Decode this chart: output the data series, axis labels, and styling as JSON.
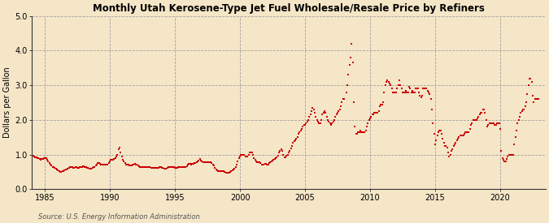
{
  "title": "Monthly Utah Kerosene-Type Jet Fuel Wholesale/Resale Price by Refiners",
  "ylabel": "Dollars per Gallon",
  "source_text": "Source: U.S. Energy Information Administration",
  "fig_facecolor": "#f5e6c8",
  "ax_facecolor": "#f5e6c8",
  "dot_color": "#cc0000",
  "xlim": [
    1984.0,
    2023.5
  ],
  "ylim": [
    0.0,
    5.0
  ],
  "yticks": [
    0.0,
    1.0,
    2.0,
    3.0,
    4.0,
    5.0
  ],
  "xticks": [
    1985,
    1990,
    1995,
    2000,
    2005,
    2010,
    2015,
    2020
  ],
  "data": [
    [
      1984.08,
      0.96
    ],
    [
      1984.17,
      0.94
    ],
    [
      1984.25,
      0.92
    ],
    [
      1984.33,
      0.91
    ],
    [
      1984.42,
      0.9
    ],
    [
      1984.5,
      0.89
    ],
    [
      1984.58,
      0.87
    ],
    [
      1984.67,
      0.86
    ],
    [
      1984.75,
      0.87
    ],
    [
      1984.83,
      0.88
    ],
    [
      1984.92,
      0.89
    ],
    [
      1985.0,
      0.9
    ],
    [
      1985.08,
      0.89
    ],
    [
      1985.17,
      0.85
    ],
    [
      1985.25,
      0.8
    ],
    [
      1985.33,
      0.75
    ],
    [
      1985.42,
      0.7
    ],
    [
      1985.5,
      0.68
    ],
    [
      1985.58,
      0.65
    ],
    [
      1985.67,
      0.63
    ],
    [
      1985.75,
      0.62
    ],
    [
      1985.83,
      0.6
    ],
    [
      1985.92,
      0.58
    ],
    [
      1986.0,
      0.55
    ],
    [
      1986.08,
      0.52
    ],
    [
      1986.17,
      0.5
    ],
    [
      1986.25,
      0.5
    ],
    [
      1986.33,
      0.52
    ],
    [
      1986.42,
      0.53
    ],
    [
      1986.5,
      0.55
    ],
    [
      1986.58,
      0.57
    ],
    [
      1986.67,
      0.58
    ],
    [
      1986.75,
      0.6
    ],
    [
      1986.83,
      0.62
    ],
    [
      1986.92,
      0.65
    ],
    [
      1987.0,
      0.65
    ],
    [
      1987.08,
      0.63
    ],
    [
      1987.17,
      0.62
    ],
    [
      1987.25,
      0.62
    ],
    [
      1987.33,
      0.63
    ],
    [
      1987.42,
      0.63
    ],
    [
      1987.5,
      0.62
    ],
    [
      1987.58,
      0.62
    ],
    [
      1987.67,
      0.63
    ],
    [
      1987.75,
      0.64
    ],
    [
      1987.83,
      0.65
    ],
    [
      1987.92,
      0.67
    ],
    [
      1988.0,
      0.67
    ],
    [
      1988.08,
      0.65
    ],
    [
      1988.17,
      0.63
    ],
    [
      1988.25,
      0.62
    ],
    [
      1988.33,
      0.61
    ],
    [
      1988.42,
      0.6
    ],
    [
      1988.5,
      0.6
    ],
    [
      1988.58,
      0.6
    ],
    [
      1988.67,
      0.62
    ],
    [
      1988.75,
      0.63
    ],
    [
      1988.83,
      0.65
    ],
    [
      1988.92,
      0.68
    ],
    [
      1989.0,
      0.72
    ],
    [
      1989.08,
      0.75
    ],
    [
      1989.17,
      0.75
    ],
    [
      1989.25,
      0.73
    ],
    [
      1989.33,
      0.72
    ],
    [
      1989.42,
      0.72
    ],
    [
      1989.5,
      0.7
    ],
    [
      1989.58,
      0.7
    ],
    [
      1989.67,
      0.7
    ],
    [
      1989.75,
      0.7
    ],
    [
      1989.83,
      0.72
    ],
    [
      1989.92,
      0.75
    ],
    [
      1990.0,
      0.8
    ],
    [
      1990.08,
      0.85
    ],
    [
      1990.17,
      0.85
    ],
    [
      1990.25,
      0.85
    ],
    [
      1990.33,
      0.88
    ],
    [
      1990.42,
      0.9
    ],
    [
      1990.5,
      0.95
    ],
    [
      1990.58,
      1.0
    ],
    [
      1990.67,
      1.15
    ],
    [
      1990.75,
      1.2
    ],
    [
      1990.83,
      1.05
    ],
    [
      1990.92,
      0.95
    ],
    [
      1991.0,
      0.85
    ],
    [
      1991.08,
      0.8
    ],
    [
      1991.17,
      0.75
    ],
    [
      1991.25,
      0.72
    ],
    [
      1991.33,
      0.7
    ],
    [
      1991.42,
      0.7
    ],
    [
      1991.5,
      0.68
    ],
    [
      1991.58,
      0.68
    ],
    [
      1991.67,
      0.68
    ],
    [
      1991.75,
      0.7
    ],
    [
      1991.83,
      0.72
    ],
    [
      1991.92,
      0.73
    ],
    [
      1992.0,
      0.72
    ],
    [
      1992.08,
      0.7
    ],
    [
      1992.17,
      0.68
    ],
    [
      1992.25,
      0.67
    ],
    [
      1992.33,
      0.65
    ],
    [
      1992.42,
      0.65
    ],
    [
      1992.5,
      0.65
    ],
    [
      1992.58,
      0.65
    ],
    [
      1992.67,
      0.65
    ],
    [
      1992.75,
      0.65
    ],
    [
      1992.83,
      0.65
    ],
    [
      1992.92,
      0.65
    ],
    [
      1993.0,
      0.64
    ],
    [
      1993.08,
      0.63
    ],
    [
      1993.17,
      0.62
    ],
    [
      1993.25,
      0.62
    ],
    [
      1993.33,
      0.62
    ],
    [
      1993.42,
      0.62
    ],
    [
      1993.5,
      0.62
    ],
    [
      1993.58,
      0.62
    ],
    [
      1993.67,
      0.62
    ],
    [
      1993.75,
      0.62
    ],
    [
      1993.83,
      0.63
    ],
    [
      1993.92,
      0.63
    ],
    [
      1994.0,
      0.62
    ],
    [
      1994.08,
      0.61
    ],
    [
      1994.17,
      0.6
    ],
    [
      1994.25,
      0.6
    ],
    [
      1994.33,
      0.6
    ],
    [
      1994.42,
      0.62
    ],
    [
      1994.5,
      0.63
    ],
    [
      1994.58,
      0.63
    ],
    [
      1994.67,
      0.63
    ],
    [
      1994.75,
      0.63
    ],
    [
      1994.83,
      0.63
    ],
    [
      1994.92,
      0.63
    ],
    [
      1995.0,
      0.62
    ],
    [
      1995.08,
      0.62
    ],
    [
      1995.17,
      0.62
    ],
    [
      1995.25,
      0.63
    ],
    [
      1995.33,
      0.63
    ],
    [
      1995.42,
      0.63
    ],
    [
      1995.5,
      0.63
    ],
    [
      1995.58,
      0.65
    ],
    [
      1995.67,
      0.65
    ],
    [
      1995.75,
      0.65
    ],
    [
      1995.83,
      0.65
    ],
    [
      1995.92,
      0.67
    ],
    [
      1996.0,
      0.7
    ],
    [
      1996.08,
      0.73
    ],
    [
      1996.17,
      0.73
    ],
    [
      1996.25,
      0.72
    ],
    [
      1996.33,
      0.73
    ],
    [
      1996.42,
      0.73
    ],
    [
      1996.5,
      0.75
    ],
    [
      1996.58,
      0.75
    ],
    [
      1996.67,
      0.77
    ],
    [
      1996.75,
      0.8
    ],
    [
      1996.83,
      0.82
    ],
    [
      1996.92,
      0.87
    ],
    [
      1997.0,
      0.83
    ],
    [
      1997.08,
      0.8
    ],
    [
      1997.17,
      0.78
    ],
    [
      1997.25,
      0.77
    ],
    [
      1997.33,
      0.77
    ],
    [
      1997.42,
      0.77
    ],
    [
      1997.5,
      0.77
    ],
    [
      1997.58,
      0.77
    ],
    [
      1997.67,
      0.77
    ],
    [
      1997.75,
      0.77
    ],
    [
      1997.83,
      0.75
    ],
    [
      1997.92,
      0.72
    ],
    [
      1998.0,
      0.68
    ],
    [
      1998.08,
      0.62
    ],
    [
      1998.17,
      0.58
    ],
    [
      1998.25,
      0.55
    ],
    [
      1998.33,
      0.53
    ],
    [
      1998.42,
      0.52
    ],
    [
      1998.5,
      0.52
    ],
    [
      1998.58,
      0.52
    ],
    [
      1998.67,
      0.52
    ],
    [
      1998.75,
      0.52
    ],
    [
      1998.83,
      0.5
    ],
    [
      1998.92,
      0.48
    ],
    [
      1999.0,
      0.47
    ],
    [
      1999.08,
      0.47
    ],
    [
      1999.17,
      0.47
    ],
    [
      1999.25,
      0.5
    ],
    [
      1999.33,
      0.52
    ],
    [
      1999.42,
      0.55
    ],
    [
      1999.5,
      0.58
    ],
    [
      1999.58,
      0.6
    ],
    [
      1999.67,
      0.65
    ],
    [
      1999.75,
      0.7
    ],
    [
      1999.83,
      0.8
    ],
    [
      1999.92,
      0.9
    ],
    [
      2000.0,
      0.95
    ],
    [
      2000.08,
      1.0
    ],
    [
      2000.17,
      1.0
    ],
    [
      2000.25,
      1.0
    ],
    [
      2000.33,
      0.98
    ],
    [
      2000.42,
      0.95
    ],
    [
      2000.5,
      0.95
    ],
    [
      2000.58,
      0.95
    ],
    [
      2000.67,
      1.0
    ],
    [
      2000.75,
      1.05
    ],
    [
      2000.83,
      1.05
    ],
    [
      2000.92,
      1.05
    ],
    [
      2001.0,
      1.0
    ],
    [
      2001.08,
      0.9
    ],
    [
      2001.17,
      0.85
    ],
    [
      2001.25,
      0.8
    ],
    [
      2001.33,
      0.78
    ],
    [
      2001.42,
      0.77
    ],
    [
      2001.5,
      0.77
    ],
    [
      2001.58,
      0.75
    ],
    [
      2001.67,
      0.72
    ],
    [
      2001.75,
      0.7
    ],
    [
      2001.83,
      0.72
    ],
    [
      2001.92,
      0.73
    ],
    [
      2002.0,
      0.73
    ],
    [
      2002.08,
      0.72
    ],
    [
      2002.17,
      0.72
    ],
    [
      2002.25,
      0.75
    ],
    [
      2002.33,
      0.78
    ],
    [
      2002.42,
      0.8
    ],
    [
      2002.5,
      0.82
    ],
    [
      2002.58,
      0.85
    ],
    [
      2002.67,
      0.88
    ],
    [
      2002.75,
      0.9
    ],
    [
      2002.83,
      0.93
    ],
    [
      2002.92,
      0.97
    ],
    [
      2003.0,
      1.05
    ],
    [
      2003.08,
      1.1
    ],
    [
      2003.17,
      1.15
    ],
    [
      2003.25,
      1.1
    ],
    [
      2003.33,
      1.0
    ],
    [
      2003.42,
      0.93
    ],
    [
      2003.5,
      0.93
    ],
    [
      2003.58,
      0.97
    ],
    [
      2003.67,
      1.0
    ],
    [
      2003.75,
      1.05
    ],
    [
      2003.83,
      1.1
    ],
    [
      2003.92,
      1.17
    ],
    [
      2004.0,
      1.25
    ],
    [
      2004.08,
      1.35
    ],
    [
      2004.17,
      1.38
    ],
    [
      2004.25,
      1.4
    ],
    [
      2004.33,
      1.45
    ],
    [
      2004.42,
      1.5
    ],
    [
      2004.5,
      1.6
    ],
    [
      2004.58,
      1.65
    ],
    [
      2004.67,
      1.7
    ],
    [
      2004.75,
      1.75
    ],
    [
      2004.83,
      1.8
    ],
    [
      2004.92,
      1.85
    ],
    [
      2005.0,
      1.85
    ],
    [
      2005.08,
      1.9
    ],
    [
      2005.17,
      1.95
    ],
    [
      2005.25,
      2.0
    ],
    [
      2005.33,
      2.1
    ],
    [
      2005.42,
      2.15
    ],
    [
      2005.5,
      2.25
    ],
    [
      2005.58,
      2.35
    ],
    [
      2005.67,
      2.3
    ],
    [
      2005.75,
      2.2
    ],
    [
      2005.83,
      2.1
    ],
    [
      2005.92,
      2.0
    ],
    [
      2006.0,
      1.95
    ],
    [
      2006.08,
      1.9
    ],
    [
      2006.17,
      1.9
    ],
    [
      2006.25,
      2.0
    ],
    [
      2006.33,
      2.15
    ],
    [
      2006.42,
      2.2
    ],
    [
      2006.5,
      2.25
    ],
    [
      2006.58,
      2.2
    ],
    [
      2006.67,
      2.1
    ],
    [
      2006.75,
      2.0
    ],
    [
      2006.83,
      1.95
    ],
    [
      2006.92,
      1.9
    ],
    [
      2007.0,
      1.85
    ],
    [
      2007.08,
      1.9
    ],
    [
      2007.17,
      1.95
    ],
    [
      2007.25,
      2.0
    ],
    [
      2007.33,
      2.1
    ],
    [
      2007.42,
      2.15
    ],
    [
      2007.5,
      2.2
    ],
    [
      2007.58,
      2.25
    ],
    [
      2007.67,
      2.3
    ],
    [
      2007.75,
      2.4
    ],
    [
      2007.83,
      2.5
    ],
    [
      2007.92,
      2.6
    ],
    [
      2008.0,
      2.6
    ],
    [
      2008.17,
      2.8
    ],
    [
      2008.25,
      3.0
    ],
    [
      2008.33,
      3.3
    ],
    [
      2008.42,
      3.6
    ],
    [
      2008.5,
      3.8
    ],
    [
      2008.58,
      4.2
    ],
    [
      2008.67,
      3.65
    ],
    [
      2008.75,
      2.5
    ],
    [
      2008.83,
      1.8
    ],
    [
      2008.92,
      1.6
    ],
    [
      2009.0,
      1.6
    ],
    [
      2009.08,
      1.65
    ],
    [
      2009.17,
      1.65
    ],
    [
      2009.25,
      1.7
    ],
    [
      2009.33,
      1.65
    ],
    [
      2009.42,
      1.65
    ],
    [
      2009.5,
      1.65
    ],
    [
      2009.58,
      1.65
    ],
    [
      2009.67,
      1.7
    ],
    [
      2009.75,
      1.8
    ],
    [
      2009.83,
      1.9
    ],
    [
      2009.92,
      2.0
    ],
    [
      2010.0,
      2.05
    ],
    [
      2010.08,
      2.1
    ],
    [
      2010.17,
      2.15
    ],
    [
      2010.25,
      2.15
    ],
    [
      2010.33,
      2.2
    ],
    [
      2010.42,
      2.2
    ],
    [
      2010.5,
      2.2
    ],
    [
      2010.58,
      2.2
    ],
    [
      2010.67,
      2.25
    ],
    [
      2010.75,
      2.4
    ],
    [
      2010.83,
      2.45
    ],
    [
      2010.92,
      2.45
    ],
    [
      2011.0,
      2.5
    ],
    [
      2011.08,
      2.8
    ],
    [
      2011.17,
      3.0
    ],
    [
      2011.25,
      3.1
    ],
    [
      2011.33,
      3.15
    ],
    [
      2011.42,
      3.1
    ],
    [
      2011.5,
      3.05
    ],
    [
      2011.58,
      3.0
    ],
    [
      2011.67,
      2.9
    ],
    [
      2011.75,
      2.8
    ],
    [
      2011.83,
      2.8
    ],
    [
      2011.92,
      2.8
    ],
    [
      2012.0,
      2.8
    ],
    [
      2012.08,
      2.9
    ],
    [
      2012.17,
      3.0
    ],
    [
      2012.25,
      3.15
    ],
    [
      2012.33,
      3.0
    ],
    [
      2012.42,
      2.9
    ],
    [
      2012.5,
      2.8
    ],
    [
      2012.58,
      2.8
    ],
    [
      2012.67,
      2.8
    ],
    [
      2012.75,
      2.85
    ],
    [
      2012.83,
      2.8
    ],
    [
      2012.92,
      2.8
    ],
    [
      2013.0,
      2.95
    ],
    [
      2013.08,
      2.9
    ],
    [
      2013.17,
      2.8
    ],
    [
      2013.25,
      2.85
    ],
    [
      2013.33,
      2.8
    ],
    [
      2013.42,
      2.8
    ],
    [
      2013.5,
      2.9
    ],
    [
      2013.58,
      2.9
    ],
    [
      2013.67,
      2.9
    ],
    [
      2013.75,
      2.8
    ],
    [
      2013.83,
      2.7
    ],
    [
      2013.92,
      2.65
    ],
    [
      2014.0,
      2.7
    ],
    [
      2014.08,
      2.9
    ],
    [
      2014.17,
      2.9
    ],
    [
      2014.25,
      2.9
    ],
    [
      2014.33,
      2.9
    ],
    [
      2014.42,
      2.85
    ],
    [
      2014.5,
      2.8
    ],
    [
      2014.58,
      2.75
    ],
    [
      2014.67,
      2.6
    ],
    [
      2014.75,
      2.3
    ],
    [
      2014.83,
      1.9
    ],
    [
      2014.92,
      1.6
    ],
    [
      2015.0,
      1.3
    ],
    [
      2015.08,
      1.4
    ],
    [
      2015.17,
      1.55
    ],
    [
      2015.25,
      1.65
    ],
    [
      2015.33,
      1.7
    ],
    [
      2015.42,
      1.7
    ],
    [
      2015.5,
      1.6
    ],
    [
      2015.58,
      1.45
    ],
    [
      2015.67,
      1.35
    ],
    [
      2015.75,
      1.25
    ],
    [
      2015.83,
      1.25
    ],
    [
      2015.92,
      1.2
    ],
    [
      2016.0,
      1.05
    ],
    [
      2016.08,
      0.95
    ],
    [
      2016.17,
      1.0
    ],
    [
      2016.25,
      1.1
    ],
    [
      2016.33,
      1.15
    ],
    [
      2016.42,
      1.25
    ],
    [
      2016.5,
      1.3
    ],
    [
      2016.58,
      1.35
    ],
    [
      2016.67,
      1.4
    ],
    [
      2016.75,
      1.45
    ],
    [
      2016.83,
      1.5
    ],
    [
      2016.92,
      1.55
    ],
    [
      2017.0,
      1.55
    ],
    [
      2017.08,
      1.55
    ],
    [
      2017.17,
      1.55
    ],
    [
      2017.25,
      1.6
    ],
    [
      2017.33,
      1.65
    ],
    [
      2017.42,
      1.65
    ],
    [
      2017.5,
      1.65
    ],
    [
      2017.58,
      1.65
    ],
    [
      2017.67,
      1.75
    ],
    [
      2017.75,
      1.85
    ],
    [
      2017.83,
      1.9
    ],
    [
      2017.92,
      2.0
    ],
    [
      2018.0,
      2.0
    ],
    [
      2018.08,
      2.0
    ],
    [
      2018.17,
      2.0
    ],
    [
      2018.25,
      2.05
    ],
    [
      2018.33,
      2.1
    ],
    [
      2018.42,
      2.15
    ],
    [
      2018.5,
      2.2
    ],
    [
      2018.58,
      2.2
    ],
    [
      2018.67,
      2.3
    ],
    [
      2018.75,
      2.3
    ],
    [
      2018.83,
      2.2
    ],
    [
      2018.92,
      2.0
    ],
    [
      2019.0,
      1.8
    ],
    [
      2019.08,
      1.85
    ],
    [
      2019.17,
      1.9
    ],
    [
      2019.25,
      1.9
    ],
    [
      2019.33,
      1.9
    ],
    [
      2019.42,
      1.9
    ],
    [
      2019.5,
      1.9
    ],
    [
      2019.58,
      1.85
    ],
    [
      2019.67,
      1.85
    ],
    [
      2019.75,
      1.9
    ],
    [
      2019.83,
      1.9
    ],
    [
      2019.92,
      1.9
    ],
    [
      2020.0,
      1.75
    ],
    [
      2020.08,
      1.1
    ],
    [
      2020.17,
      0.9
    ],
    [
      2020.25,
      0.85
    ],
    [
      2020.33,
      0.8
    ],
    [
      2020.42,
      0.8
    ],
    [
      2020.5,
      0.88
    ],
    [
      2020.58,
      0.95
    ],
    [
      2020.67,
      1.0
    ],
    [
      2020.75,
      1.0
    ],
    [
      2020.83,
      1.0
    ],
    [
      2020.92,
      1.0
    ],
    [
      2021.0,
      1.0
    ],
    [
      2021.08,
      1.3
    ],
    [
      2021.17,
      1.5
    ],
    [
      2021.25,
      1.7
    ],
    [
      2021.33,
      1.9
    ],
    [
      2021.42,
      2.0
    ],
    [
      2021.5,
      2.1
    ],
    [
      2021.58,
      2.2
    ],
    [
      2021.67,
      2.25
    ],
    [
      2021.75,
      2.3
    ],
    [
      2021.83,
      2.3
    ],
    [
      2021.92,
      2.4
    ],
    [
      2022.0,
      2.5
    ],
    [
      2022.08,
      2.75
    ],
    [
      2022.17,
      3.0
    ],
    [
      2022.25,
      3.2
    ],
    [
      2022.33,
      3.2
    ],
    [
      2022.42,
      3.1
    ],
    [
      2022.5,
      2.7
    ],
    [
      2022.58,
      2.5
    ],
    [
      2022.67,
      2.6
    ],
    [
      2022.75,
      2.6
    ],
    [
      2022.83,
      2.6
    ],
    [
      2022.92,
      2.6
    ]
  ]
}
